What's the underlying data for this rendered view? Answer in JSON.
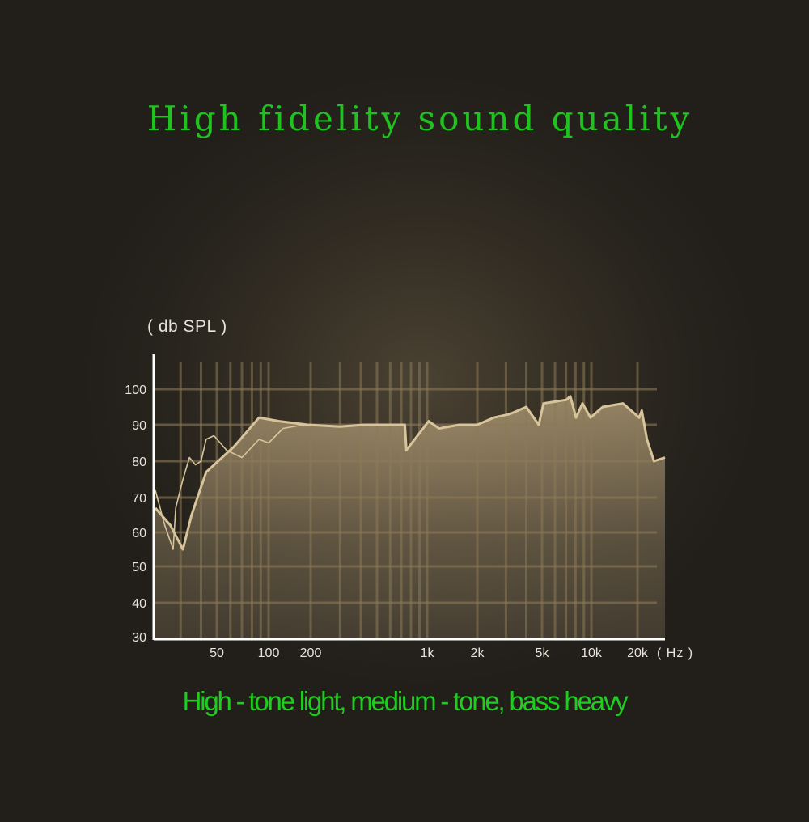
{
  "title": "High fidelity sound quality",
  "subtitle": "High - tone light, medium - tone, bass heavy",
  "chart_data": {
    "type": "area",
    "title": "High fidelity sound quality",
    "ylabel": "( db SPL )",
    "xlabel": "( Hz )",
    "x_scale": "log",
    "ylim": [
      30,
      105
    ],
    "xlim": [
      21,
      30000
    ],
    "grid": true,
    "y_ticks": [
      100,
      90,
      80,
      70,
      60,
      50,
      40,
      30
    ],
    "x_ticks": [
      {
        "value": 50,
        "label": "50"
      },
      {
        "value": 100,
        "label": "100"
      },
      {
        "value": 200,
        "label": "200"
      },
      {
        "value": 1000,
        "label": "1k"
      },
      {
        "value": 2000,
        "label": "2k"
      },
      {
        "value": 5000,
        "label": "5k"
      },
      {
        "value": 10000,
        "label": "10k"
      },
      {
        "value": 20000,
        "label": "20k"
      }
    ],
    "colors": {
      "fill": "#b7a17a",
      "line": "#d8c49a",
      "axis": "#ffffff",
      "grid": "#8c7a58",
      "text_green": "#1fc21f"
    },
    "series": [
      {
        "style": "filled",
        "x": [
          21,
          26,
          31,
          35,
          43,
          63,
          88,
          119,
          190,
          299,
          418,
          735,
          750,
          1020,
          1180,
          1560,
          2000,
          2520,
          3170,
          4000,
          4770,
          5110,
          7030,
          7440,
          8060,
          8830,
          9880,
          11850,
          16060,
          20500,
          21300,
          23000,
          25500,
          30000
        ],
        "y": [
          67,
          62,
          55,
          65,
          77,
          84,
          92,
          91,
          90,
          89.5,
          90,
          90,
          83,
          91,
          89,
          90,
          90,
          92,
          93,
          95,
          90,
          96,
          97,
          98,
          92,
          96,
          92,
          95,
          96,
          92,
          94,
          86,
          80,
          81
        ]
      },
      {
        "style": "line",
        "x": [
          21,
          24,
          27,
          28,
          31,
          34,
          37,
          40,
          43,
          48,
          57,
          70,
          88,
          100,
          127,
          178
        ],
        "y": [
          72,
          62,
          55,
          67,
          75,
          81,
          79,
          80,
          86,
          87,
          83,
          81,
          86,
          85,
          89,
          90
        ]
      }
    ]
  }
}
